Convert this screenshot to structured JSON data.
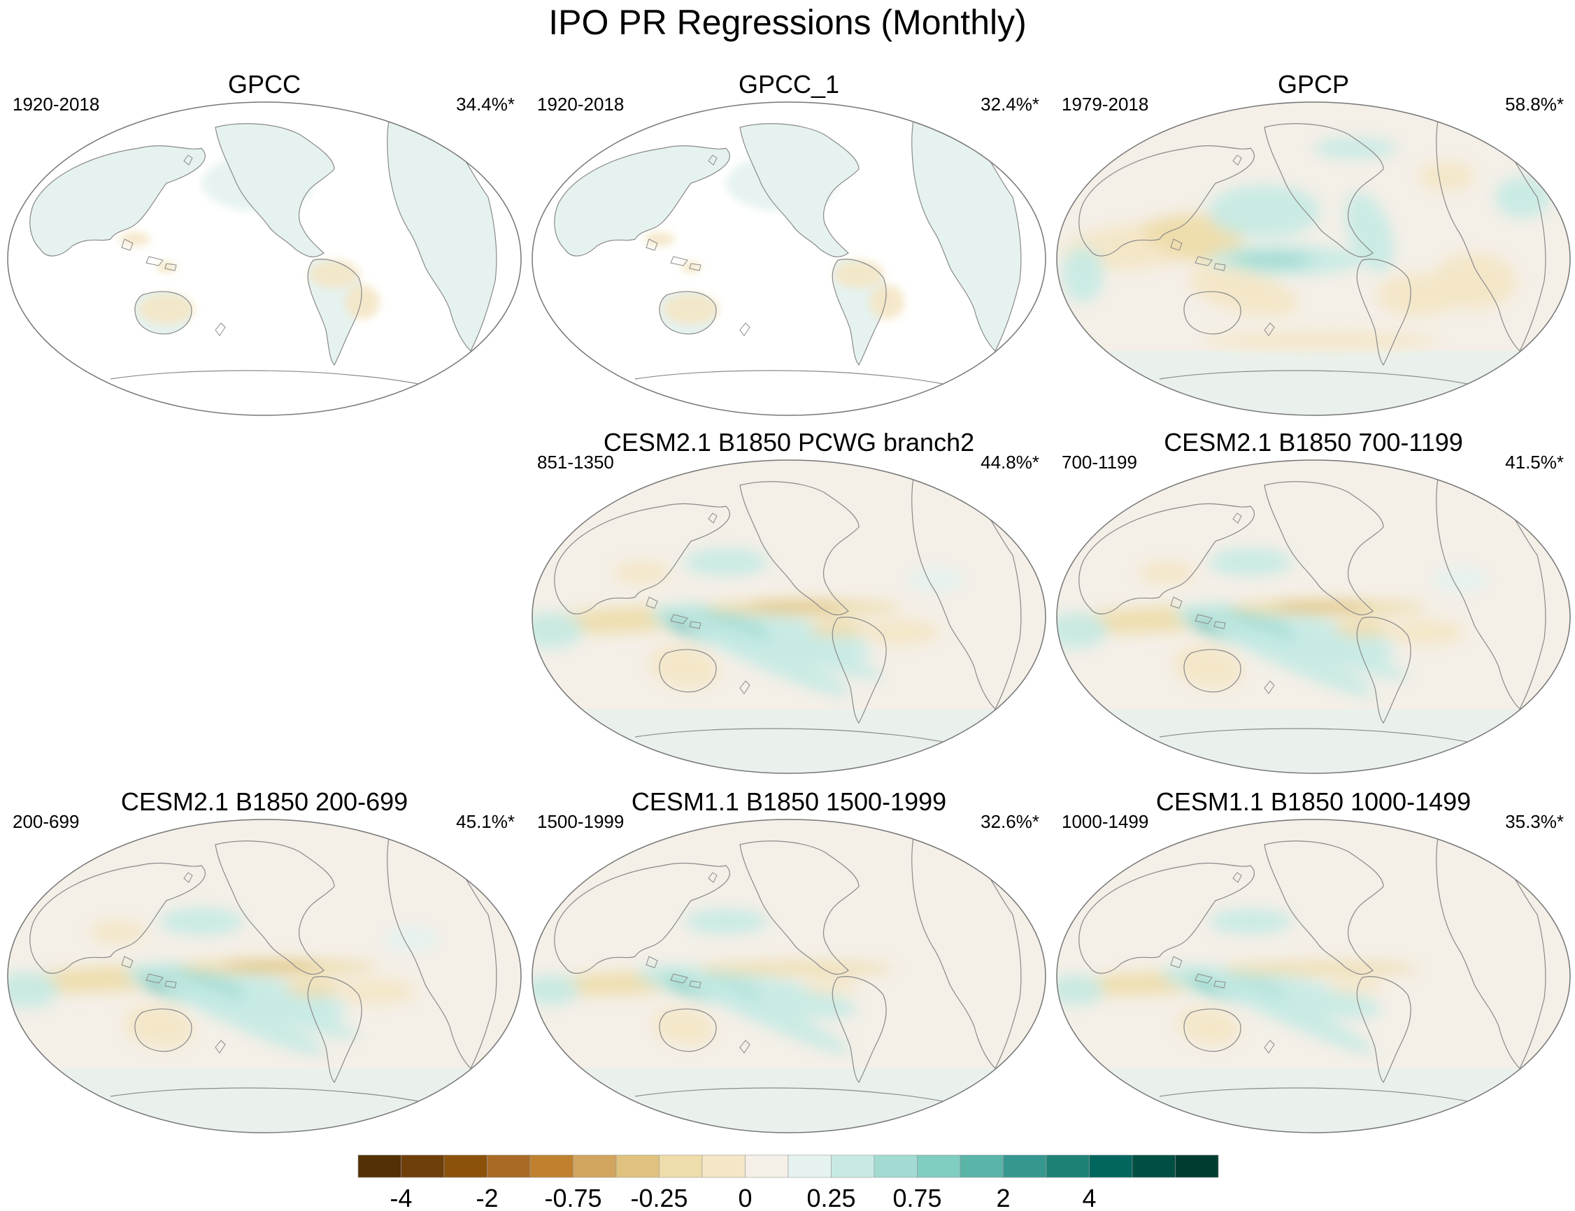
{
  "figure": {
    "title": "IPO PR Regressions (Monthly)"
  },
  "colors": {
    "ocean_neutral": "#f4efe7",
    "land_line": "#8a8a8a",
    "frame": "#777777",
    "palette": [
      "#543005",
      "#6e3f0b",
      "#8c510a",
      "#a86a24",
      "#bf812d",
      "#d2a55f",
      "#dfc27d",
      "#eedcaa",
      "#f4e6c6",
      "#f4efe7",
      "#e5f2f0",
      "#c7eae5",
      "#a1dbd1",
      "#80cdc1",
      "#5ab4a8",
      "#35978f",
      "#1d8276",
      "#01665e",
      "#004f45",
      "#003c30"
    ]
  },
  "chart_data": {
    "type": "contour-map-grid",
    "projection": "Robinson, Pacific-centered",
    "variable": "precipitation regression on IPO",
    "colorbar": {
      "levels": [
        -4,
        -3,
        -2,
        -1,
        -0.75,
        -0.5,
        -0.25,
        -0.1,
        0,
        0.1,
        0.25,
        0.5,
        0.75,
        1,
        2,
        3,
        4,
        5
      ],
      "tick_labels": [
        "-4",
        "-2",
        "-0.75",
        "-0.25",
        "0",
        "0.25",
        "0.75",
        "2",
        "4"
      ],
      "tick_values": [
        -4,
        -2,
        -0.75,
        -0.25,
        0,
        0.25,
        0.75,
        2,
        4
      ]
    },
    "panels": [
      {
        "id": "gpcc",
        "title": "GPCC",
        "period": "1920-2018",
        "variance": "34.4%*",
        "coverage": "land-only",
        "pattern": "weak"
      },
      {
        "id": "gpcc1",
        "title": "GPCC_1",
        "period": "1920-2018",
        "variance": "32.4%*",
        "coverage": "land-only",
        "pattern": "weak"
      },
      {
        "id": "gpcp",
        "title": "GPCP",
        "period": "1979-2018",
        "variance": "58.8%*",
        "coverage": "global",
        "pattern": "observed"
      },
      {
        "id": "cesm21-pcwg",
        "title": "CESM2.1 B1850 PCWG branch2",
        "period": "851-1350",
        "variance": "44.8%*",
        "coverage": "global",
        "pattern": "strong"
      },
      {
        "id": "cesm21-700",
        "title": "CESM2.1 B1850 700-1199",
        "period": "700-1199",
        "variance": "41.5%*",
        "coverage": "global",
        "pattern": "strong"
      },
      {
        "id": "cesm21-200",
        "title": "CESM2.1 B1850 200-699",
        "period": "200-699",
        "variance": "45.1%*",
        "coverage": "global",
        "pattern": "strong"
      },
      {
        "id": "cesm11-1500",
        "title": "CESM1.1 B1850 1500-1999",
        "period": "1500-1999",
        "variance": "32.6%*",
        "coverage": "global",
        "pattern": "medium"
      },
      {
        "id": "cesm11-1000",
        "title": "CESM1.1 B1850 1000-1499",
        "period": "1000-1499",
        "variance": "35.3%*",
        "coverage": "global",
        "pattern": "medium"
      }
    ]
  }
}
